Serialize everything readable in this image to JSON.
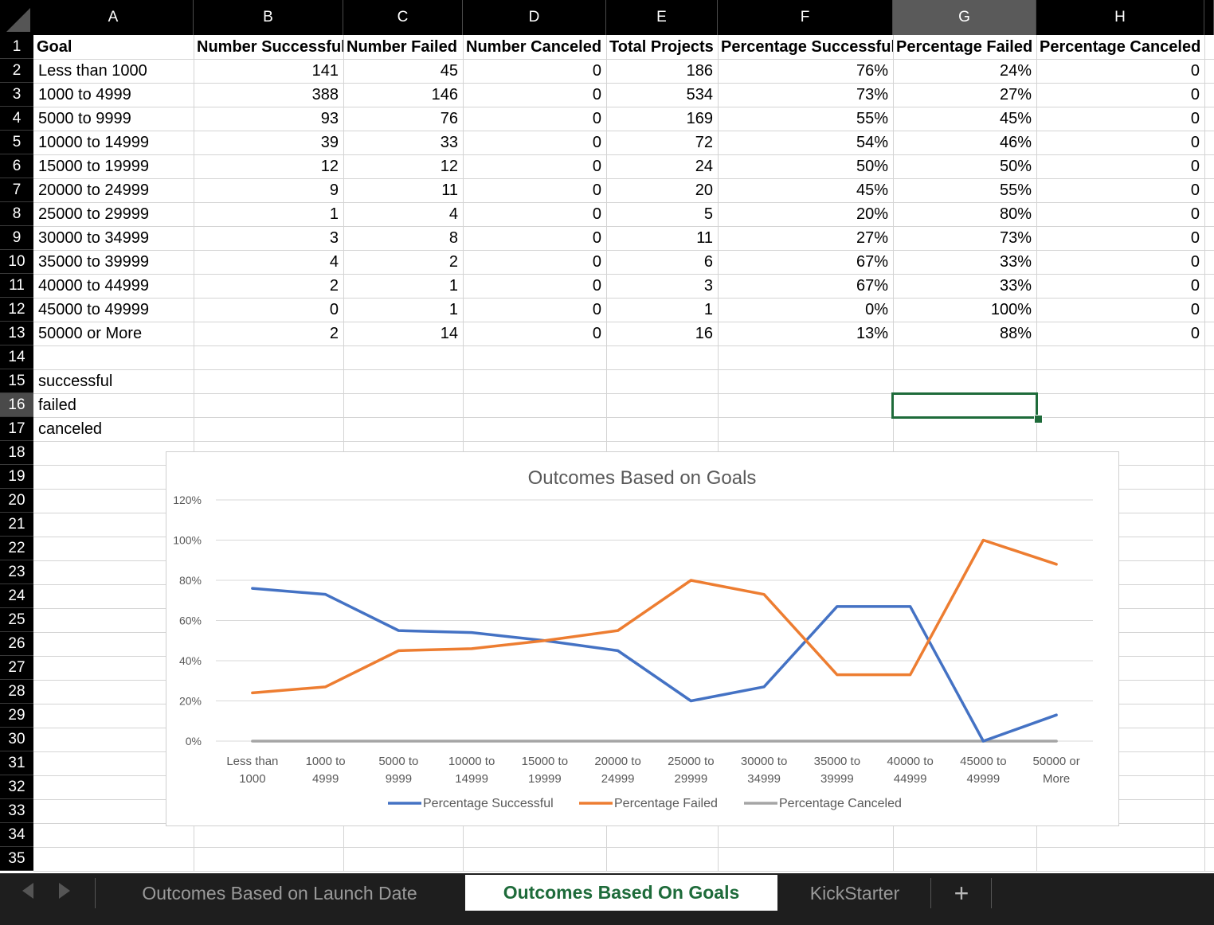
{
  "columns": [
    "A",
    "B",
    "C",
    "D",
    "E",
    "F",
    "G",
    "H"
  ],
  "selected_column": "G",
  "selected_row": 16,
  "row_numbers": [
    1,
    2,
    3,
    4,
    5,
    6,
    7,
    8,
    9,
    10,
    11,
    12,
    13,
    14,
    15,
    16,
    17,
    18,
    19,
    20,
    21,
    22,
    23,
    24,
    25,
    26,
    27,
    28,
    29,
    30,
    31,
    32,
    33,
    34,
    35
  ],
  "headers": [
    "Goal",
    "Number Successful",
    "Number Failed",
    "Number Canceled",
    "Total Projects",
    "Percentage Successful",
    "Percentage Failed",
    "Percentage Canceled"
  ],
  "rows": [
    [
      "Less than 1000",
      "141",
      "45",
      "0",
      "186",
      "76%",
      "24%",
      "0"
    ],
    [
      "1000 to 4999",
      "388",
      "146",
      "0",
      "534",
      "73%",
      "27%",
      "0"
    ],
    [
      "5000 to 9999",
      "93",
      "76",
      "0",
      "169",
      "55%",
      "45%",
      "0"
    ],
    [
      "10000 to 14999",
      "39",
      "33",
      "0",
      "72",
      "54%",
      "46%",
      "0"
    ],
    [
      "15000 to 19999",
      "12",
      "12",
      "0",
      "24",
      "50%",
      "50%",
      "0"
    ],
    [
      "20000 to 24999",
      "9",
      "11",
      "0",
      "20",
      "45%",
      "55%",
      "0"
    ],
    [
      "25000 to 29999",
      "1",
      "4",
      "0",
      "5",
      "20%",
      "80%",
      "0"
    ],
    [
      "30000 to 34999",
      "3",
      "8",
      "0",
      "11",
      "27%",
      "73%",
      "0"
    ],
    [
      "35000 to 39999",
      "4",
      "2",
      "0",
      "6",
      "67%",
      "33%",
      "0"
    ],
    [
      "40000 to 44999",
      "2",
      "1",
      "0",
      "3",
      "67%",
      "33%",
      "0"
    ],
    [
      "45000 to 49999",
      "0",
      "1",
      "0",
      "1",
      "0%",
      "100%",
      "0"
    ],
    [
      "50000 or More",
      "2",
      "14",
      "0",
      "16",
      "13%",
      "88%",
      "0"
    ]
  ],
  "extra_labels": [
    "successful",
    "failed",
    "canceled"
  ],
  "sheet_tabs": [
    {
      "label": "Outcomes Based on Launch Date",
      "active": false
    },
    {
      "label": "Outcomes Based On Goals",
      "active": true
    },
    {
      "label": "KickStarter",
      "active": false
    }
  ],
  "add_sheet_label": "+",
  "chart_data": {
    "type": "line",
    "title": "Outcomes Based on Goals",
    "categories": [
      "Less than 1000",
      "1000 to 4999",
      "5000 to 9999",
      "10000 to 14999",
      "15000 to 19999",
      "20000 to 24999",
      "25000 to 29999",
      "30000 to 34999",
      "35000 to 39999",
      "40000 to 44999",
      "45000 to 49999",
      "50000 or More"
    ],
    "category_lines": [
      [
        "Less than",
        "1000"
      ],
      [
        "1000 to",
        "4999"
      ],
      [
        "5000 to",
        "9999"
      ],
      [
        "10000 to",
        "14999"
      ],
      [
        "15000 to",
        "19999"
      ],
      [
        "20000 to",
        "24999"
      ],
      [
        "25000 to",
        "29999"
      ],
      [
        "30000 to",
        "34999"
      ],
      [
        "35000 to",
        "39999"
      ],
      [
        "40000 to",
        "44999"
      ],
      [
        "45000 to",
        "49999"
      ],
      [
        "50000 or",
        "More"
      ]
    ],
    "series": [
      {
        "name": "Percentage Successful",
        "color": "#4472C4",
        "values": [
          76,
          73,
          55,
          54,
          50,
          45,
          20,
          27,
          67,
          67,
          0,
          13
        ]
      },
      {
        "name": "Percentage Failed",
        "color": "#ED7D31",
        "values": [
          24,
          27,
          45,
          46,
          50,
          55,
          80,
          73,
          33,
          33,
          100,
          88
        ]
      },
      {
        "name": "Percentage Canceled",
        "color": "#A5A5A5",
        "values": [
          0,
          0,
          0,
          0,
          0,
          0,
          0,
          0,
          0,
          0,
          0,
          0
        ]
      }
    ],
    "ylim": [
      0,
      120
    ],
    "yticks": [
      "0%",
      "20%",
      "40%",
      "60%",
      "80%",
      "100%",
      "120%"
    ],
    "grid": true,
    "legend_position": "bottom"
  }
}
